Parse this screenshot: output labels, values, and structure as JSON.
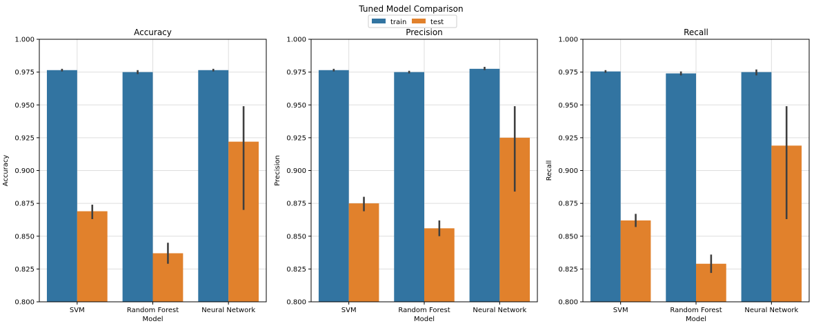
{
  "figure": {
    "title": "Tuned Model Comparison"
  },
  "legend": {
    "placement": "top-center",
    "entries": [
      {
        "label": "train",
        "color": "#3274a1"
      },
      {
        "label": "test",
        "color": "#e1812c"
      }
    ]
  },
  "colors": {
    "train": "#3274a1",
    "test": "#e1812c",
    "error_bar": "#3f3f3f",
    "grid": "#dddddd"
  },
  "chart_data": [
    {
      "type": "bar",
      "title": "Accuracy",
      "xlabel": "Model",
      "ylabel": "Accuracy",
      "ylim": [
        0.8,
        1.0
      ],
      "yticks": [
        "0.800",
        "0.825",
        "0.850",
        "0.875",
        "0.900",
        "0.925",
        "0.950",
        "0.975",
        "1.000"
      ],
      "grid": true,
      "categories": [
        "SVM",
        "Random Forest",
        "Neural Network"
      ],
      "series": [
        {
          "name": "train",
          "values": [
            0.9765,
            0.975,
            0.9765
          ],
          "err_low": [
            0.9755,
            0.9735,
            0.9755
          ],
          "err_high": [
            0.9775,
            0.9765,
            0.9775
          ]
        },
        {
          "name": "test",
          "values": [
            0.869,
            0.837,
            0.922
          ],
          "err_low": [
            0.863,
            0.829,
            0.87
          ],
          "err_high": [
            0.874,
            0.845,
            0.949
          ]
        }
      ]
    },
    {
      "type": "bar",
      "title": "Precision",
      "xlabel": "Model",
      "ylabel": "Precision",
      "ylim": [
        0.8,
        1.0
      ],
      "yticks": [
        "0.800",
        "0.825",
        "0.850",
        "0.875",
        "0.900",
        "0.925",
        "0.950",
        "0.975",
        "1.000"
      ],
      "grid": true,
      "categories": [
        "SVM",
        "Random Forest",
        "Neural Network"
      ],
      "series": [
        {
          "name": "train",
          "values": [
            0.9765,
            0.975,
            0.9775
          ],
          "err_low": [
            0.9755,
            0.974,
            0.9765
          ],
          "err_high": [
            0.9775,
            0.976,
            0.979
          ]
        },
        {
          "name": "test",
          "values": [
            0.875,
            0.856,
            0.925
          ],
          "err_low": [
            0.869,
            0.85,
            0.884
          ],
          "err_high": [
            0.88,
            0.862,
            0.949
          ]
        }
      ]
    },
    {
      "type": "bar",
      "title": "Recall",
      "xlabel": "Model",
      "ylabel": "Recall",
      "ylim": [
        0.8,
        1.0
      ],
      "yticks": [
        "0.800",
        "0.825",
        "0.850",
        "0.875",
        "0.900",
        "0.925",
        "0.950",
        "0.975",
        "1.000"
      ],
      "grid": true,
      "categories": [
        "SVM",
        "Random Forest",
        "Neural Network"
      ],
      "series": [
        {
          "name": "train",
          "values": [
            0.9755,
            0.974,
            0.975
          ],
          "err_low": [
            0.9745,
            0.9725,
            0.9725
          ],
          "err_high": [
            0.9765,
            0.9755,
            0.977
          ]
        },
        {
          "name": "test",
          "values": [
            0.862,
            0.829,
            0.919
          ],
          "err_low": [
            0.857,
            0.822,
            0.863
          ],
          "err_high": [
            0.867,
            0.836,
            0.949
          ]
        }
      ]
    }
  ]
}
